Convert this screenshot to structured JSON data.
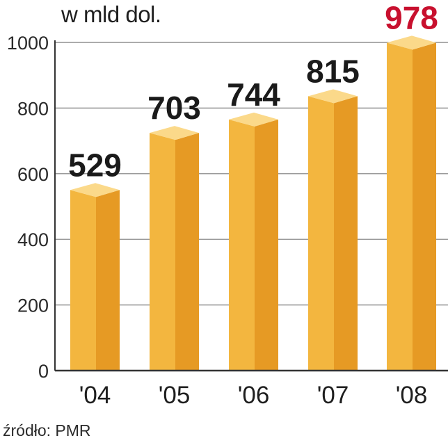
{
  "chart_data": {
    "type": "bar",
    "title": "",
    "unit_label": "w mld dol.",
    "categories": [
      "'04",
      "'05",
      "'06",
      "'07",
      "'08"
    ],
    "values": [
      529,
      703,
      744,
      815,
      978
    ],
    "value_labels": [
      "529",
      "703",
      "744",
      "815",
      "978"
    ],
    "highlight_index": 4,
    "ylim": [
      0,
      1000
    ],
    "yticks": [
      "0",
      "200",
      "400",
      "600",
      "800",
      "1000"
    ],
    "grid": true,
    "source": "źródło: PMR"
  },
  "colors": {
    "bar_front": "#f3b63f",
    "bar_side": "#e69a24",
    "bar_top": "#fbd98a",
    "grid": "#7a7a7a",
    "axis": "#333333",
    "highlight": "#c8102e"
  }
}
